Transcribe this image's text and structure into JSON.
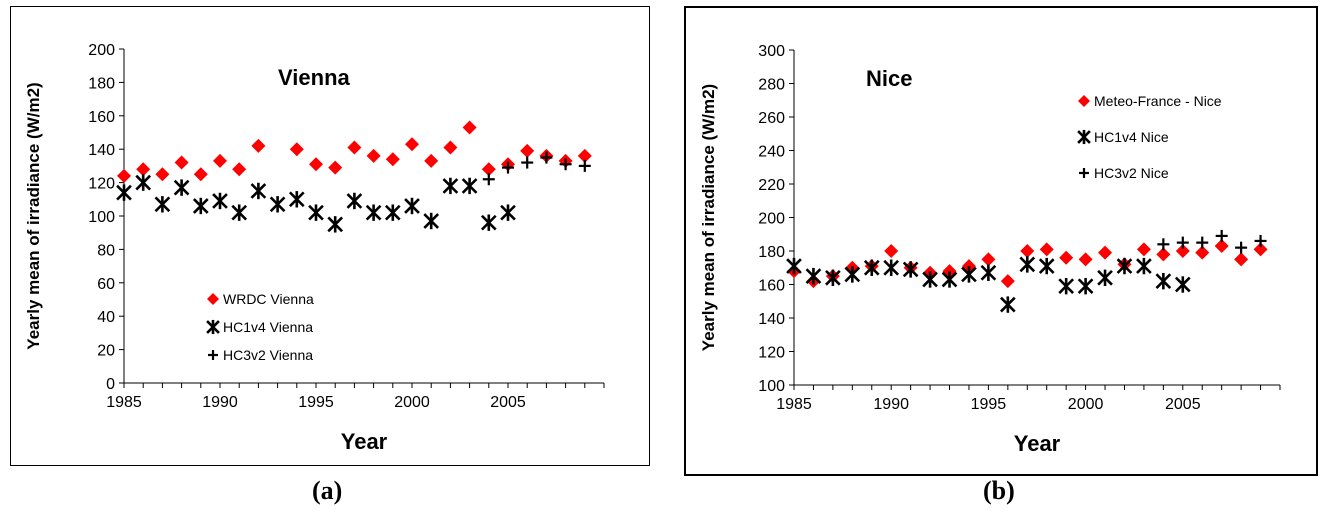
{
  "chart_data": [
    {
      "type": "scatter",
      "panel_label": "(a)",
      "title": "Vienna",
      "xlabel": "Year",
      "ylabel": "Yearly mean of irradiance (W/m2)",
      "xlim": [
        1985,
        2010
      ],
      "ylim": [
        0,
        200
      ],
      "xticks": [
        1985,
        1990,
        1995,
        2000,
        2005
      ],
      "yticks": [
        0,
        20,
        40,
        60,
        80,
        100,
        120,
        140,
        160,
        180,
        200
      ],
      "grid": false,
      "legend_position": "bottom-left",
      "series": [
        {
          "name": "WRDC Vienna",
          "marker": "diamond",
          "color": "#ff0000",
          "x": [
            1985,
            1986,
            1987,
            1988,
            1989,
            1990,
            1991,
            1992,
            1994,
            1995,
            1996,
            1997,
            1998,
            1999,
            2000,
            2001,
            2002,
            2003,
            2004,
            2005,
            2006,
            2007,
            2008,
            2009
          ],
          "y": [
            124,
            128,
            125,
            132,
            125,
            133,
            128,
            142,
            140,
            131,
            129,
            141,
            136,
            134,
            143,
            133,
            141,
            153,
            128,
            131,
            139,
            136,
            133,
            136
          ]
        },
        {
          "name": "HC1v4 Vienna",
          "marker": "asterisk",
          "color": "#000000",
          "x": [
            1985,
            1986,
            1987,
            1988,
            1989,
            1990,
            1991,
            1992,
            1993,
            1994,
            1995,
            1996,
            1997,
            1998,
            1999,
            2000,
            2001,
            2002,
            2003,
            2004,
            2005
          ],
          "y": [
            114,
            120,
            107,
            117,
            106,
            109,
            102,
            115,
            107,
            110,
            102,
            95,
            109,
            102,
            102,
            106,
            97,
            118,
            118,
            96,
            102
          ]
        },
        {
          "name": "HC3v2 Vienna",
          "marker": "plus",
          "color": "#000000",
          "x": [
            2004,
            2005,
            2006,
            2007,
            2008,
            2009
          ],
          "y": [
            122,
            129,
            132,
            135,
            131,
            130
          ]
        }
      ]
    },
    {
      "type": "scatter",
      "panel_label": "(b)",
      "title": "Nice",
      "xlabel": "Year",
      "ylabel": "Yearly mean of irradiance (W/m2)",
      "xlim": [
        1985,
        2010
      ],
      "ylim": [
        100,
        300
      ],
      "xticks": [
        1985,
        1990,
        1995,
        2000,
        2005
      ],
      "yticks": [
        100,
        120,
        140,
        160,
        180,
        200,
        220,
        240,
        260,
        280,
        300
      ],
      "grid": false,
      "legend_position": "top-right",
      "series": [
        {
          "name": "Meteo-France - Nice",
          "marker": "diamond",
          "color": "#ff0000",
          "x": [
            1985,
            1986,
            1987,
            1988,
            1989,
            1990,
            1991,
            1992,
            1993,
            1994,
            1995,
            1996,
            1997,
            1998,
            1999,
            2000,
            2001,
            2002,
            2003,
            2004,
            2005,
            2006,
            2007,
            2008,
            2009
          ],
          "y": [
            168,
            162,
            165,
            170,
            171,
            180,
            170,
            167,
            168,
            171,
            175,
            162,
            180,
            181,
            176,
            175,
            179,
            172,
            181,
            178,
            180,
            179,
            183,
            175,
            181
          ]
        },
        {
          "name": "HC1v4 Nice",
          "marker": "asterisk",
          "color": "#000000",
          "x": [
            1985,
            1986,
            1987,
            1988,
            1989,
            1990,
            1991,
            1992,
            1993,
            1994,
            1995,
            1996,
            1997,
            1998,
            1999,
            2000,
            2001,
            2002,
            2003,
            2004,
            2005
          ],
          "y": [
            171,
            165,
            164,
            166,
            170,
            170,
            169,
            163,
            163,
            166,
            167,
            148,
            172,
            171,
            159,
            159,
            164,
            171,
            171,
            162,
            160
          ]
        },
        {
          "name": "HC3v2 Nice",
          "marker": "plus",
          "color": "#000000",
          "x": [
            2004,
            2005,
            2006,
            2007,
            2008,
            2009
          ],
          "y": [
            184,
            185,
            185,
            189,
            182,
            186
          ]
        }
      ]
    }
  ]
}
